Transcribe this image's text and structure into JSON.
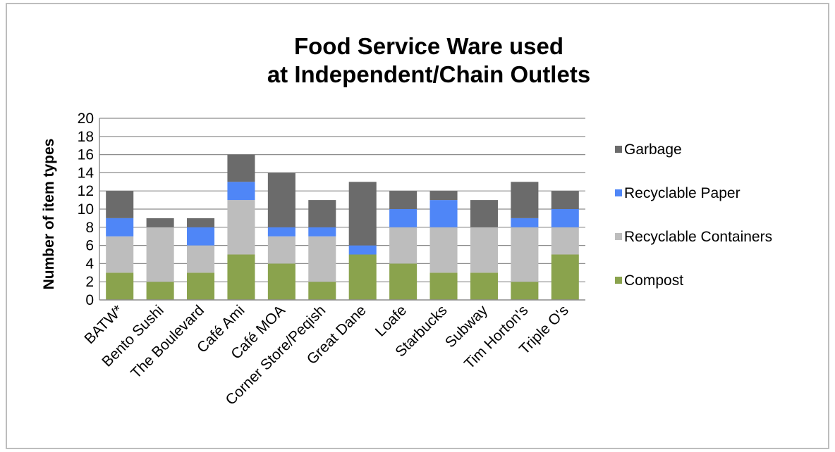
{
  "chart_data": {
    "type": "bar",
    "stacked": true,
    "title": "Food Service Ware used",
    "subtitle": "at Independent/Chain Outlets",
    "xlabel": "",
    "ylabel": "Number of item types",
    "ylim": [
      0,
      20
    ],
    "ytick_step": 2,
    "grid": true,
    "legend_position": "right",
    "categories": [
      "BATW*",
      "Bento Sushi",
      "The Boulevard",
      "Café Ami",
      "Café MOA",
      "Corner Store/Peqish",
      "Great Dane",
      "Loafe",
      "Starbucks",
      "Subway",
      "Tim Horton's",
      "Triple O's"
    ],
    "series": [
      {
        "name": "Compost",
        "color": "#8aa34d",
        "values": [
          3,
          2,
          3,
          5,
          4,
          2,
          5,
          4,
          3,
          3,
          2,
          5
        ]
      },
      {
        "name": "Recyclable Containers",
        "color": "#bdbdbd",
        "values": [
          4,
          6,
          3,
          6,
          3,
          5,
          0,
          4,
          5,
          5,
          6,
          3
        ]
      },
      {
        "name": "Recyclable Paper",
        "color": "#4f86f7",
        "values": [
          2,
          0,
          2,
          2,
          1,
          1,
          1,
          2,
          3,
          0,
          1,
          2
        ]
      },
      {
        "name": "Garbage",
        "color": "#6b6b6b",
        "values": [
          3,
          1,
          1,
          3,
          6,
          3,
          7,
          2,
          1,
          3,
          4,
          2
        ]
      }
    ],
    "legend_order": [
      "Garbage",
      "Recyclable Paper",
      "Recyclable Containers",
      "Compost"
    ]
  },
  "colors": {
    "grid": "#8c8c8c",
    "axis": "#8c8c8c",
    "frame": "#bdbdbd"
  }
}
